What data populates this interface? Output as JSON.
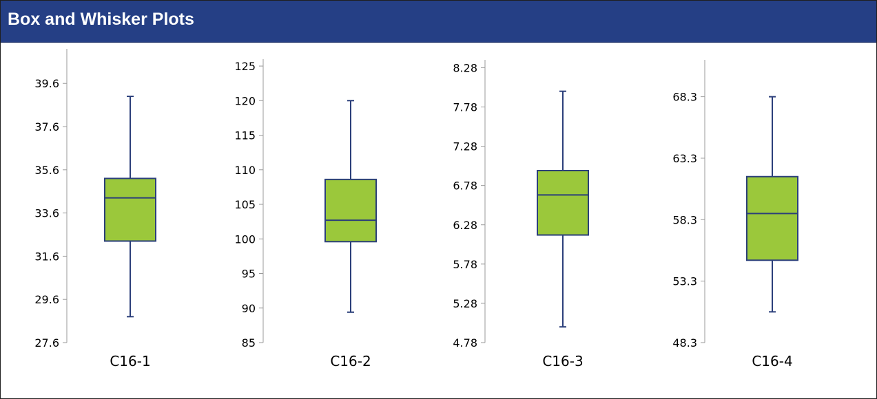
{
  "header": {
    "title": "Box and Whisker Plots"
  },
  "colors": {
    "header_bg": "#253f85",
    "box_fill": "#9bc83b",
    "stroke": "#2b3f7a",
    "axis": "#9a9a9a"
  },
  "chart_data": [
    {
      "type": "box",
      "category": "C16-1",
      "yticks": [
        "27.6",
        "29.6",
        "31.6",
        "33.6",
        "35.6",
        "37.6",
        "39.6"
      ],
      "ylim": [
        27.6,
        41.2
      ],
      "whisker_low": 28.8,
      "q1": 32.3,
      "median": 34.3,
      "q3": 35.2,
      "whisker_high": 39.0
    },
    {
      "type": "box",
      "category": "C16-2",
      "yticks": [
        "85",
        "90",
        "95",
        "100",
        "105",
        "110",
        "115",
        "120",
        "125"
      ],
      "ylim": [
        85,
        126
      ],
      "whisker_low": 89.4,
      "q1": 99.6,
      "median": 102.7,
      "q3": 108.6,
      "whisker_high": 120.0
    },
    {
      "type": "box",
      "category": "C16-3",
      "yticks": [
        "4.78",
        "5.28",
        "5.78",
        "6.28",
        "6.78",
        "7.28",
        "7.78",
        "8.28"
      ],
      "ylim": [
        4.78,
        8.38
      ],
      "whisker_low": 4.98,
      "q1": 6.15,
      "median": 6.66,
      "q3": 6.97,
      "whisker_high": 7.98
    },
    {
      "type": "box",
      "category": "C16-4",
      "yticks": [
        "48.3",
        "53.3",
        "58.3",
        "63.3",
        "68.3"
      ],
      "ylim": [
        48.3,
        71.3
      ],
      "whisker_low": 50.8,
      "q1": 55.0,
      "median": 58.8,
      "q3": 61.8,
      "whisker_high": 68.3
    }
  ]
}
